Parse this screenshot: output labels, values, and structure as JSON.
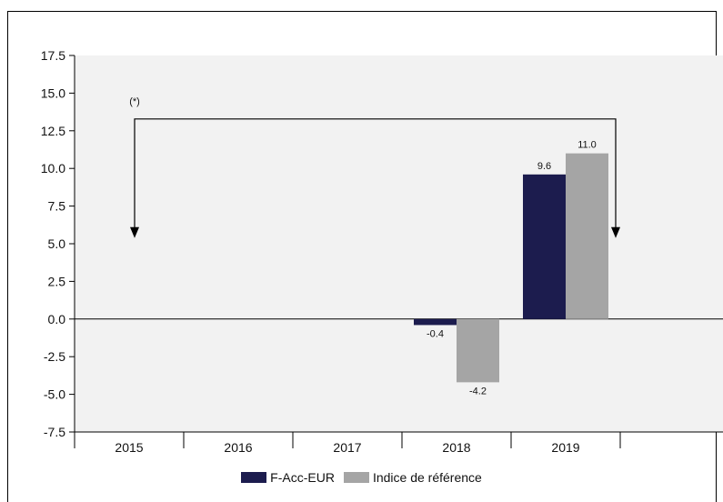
{
  "chart_data": {
    "type": "bar",
    "categories": [
      "2015",
      "2016",
      "2017",
      "2018",
      "2019"
    ],
    "series": [
      {
        "name": "F-Acc-EUR",
        "color": "#1c1c4e",
        "values": [
          null,
          null,
          null,
          -0.4,
          9.6
        ],
        "labels": [
          "",
          "",
          "",
          "-0.4",
          "9.6"
        ]
      },
      {
        "name": "Indice de référence",
        "color": "#a5a5a5",
        "values": [
          null,
          null,
          null,
          -4.2,
          11.0
        ],
        "labels": [
          "",
          "",
          "",
          "-4.2",
          "11.0"
        ]
      }
    ],
    "ylim": [
      -7.5,
      17.5
    ],
    "yticks": [
      "17.5",
      "15.0",
      "12.5",
      "10.0",
      "7.5",
      "5.0",
      "2.5",
      "0.0",
      "-2.5",
      "-5.0",
      "-7.5"
    ],
    "ytick_values": [
      17.5,
      15.0,
      12.5,
      10.0,
      7.5,
      5.0,
      2.5,
      0.0,
      -2.5,
      -5.0,
      -7.5
    ],
    "annotation": {
      "label": "(*)",
      "from_category": "2015",
      "to_category": "2019"
    },
    "plot_background": "#f2f2f2",
    "grid": false,
    "legend_position": "bottom"
  },
  "legend": {
    "series_1": "F-Acc-EUR",
    "series_2": "Indice de référence"
  }
}
